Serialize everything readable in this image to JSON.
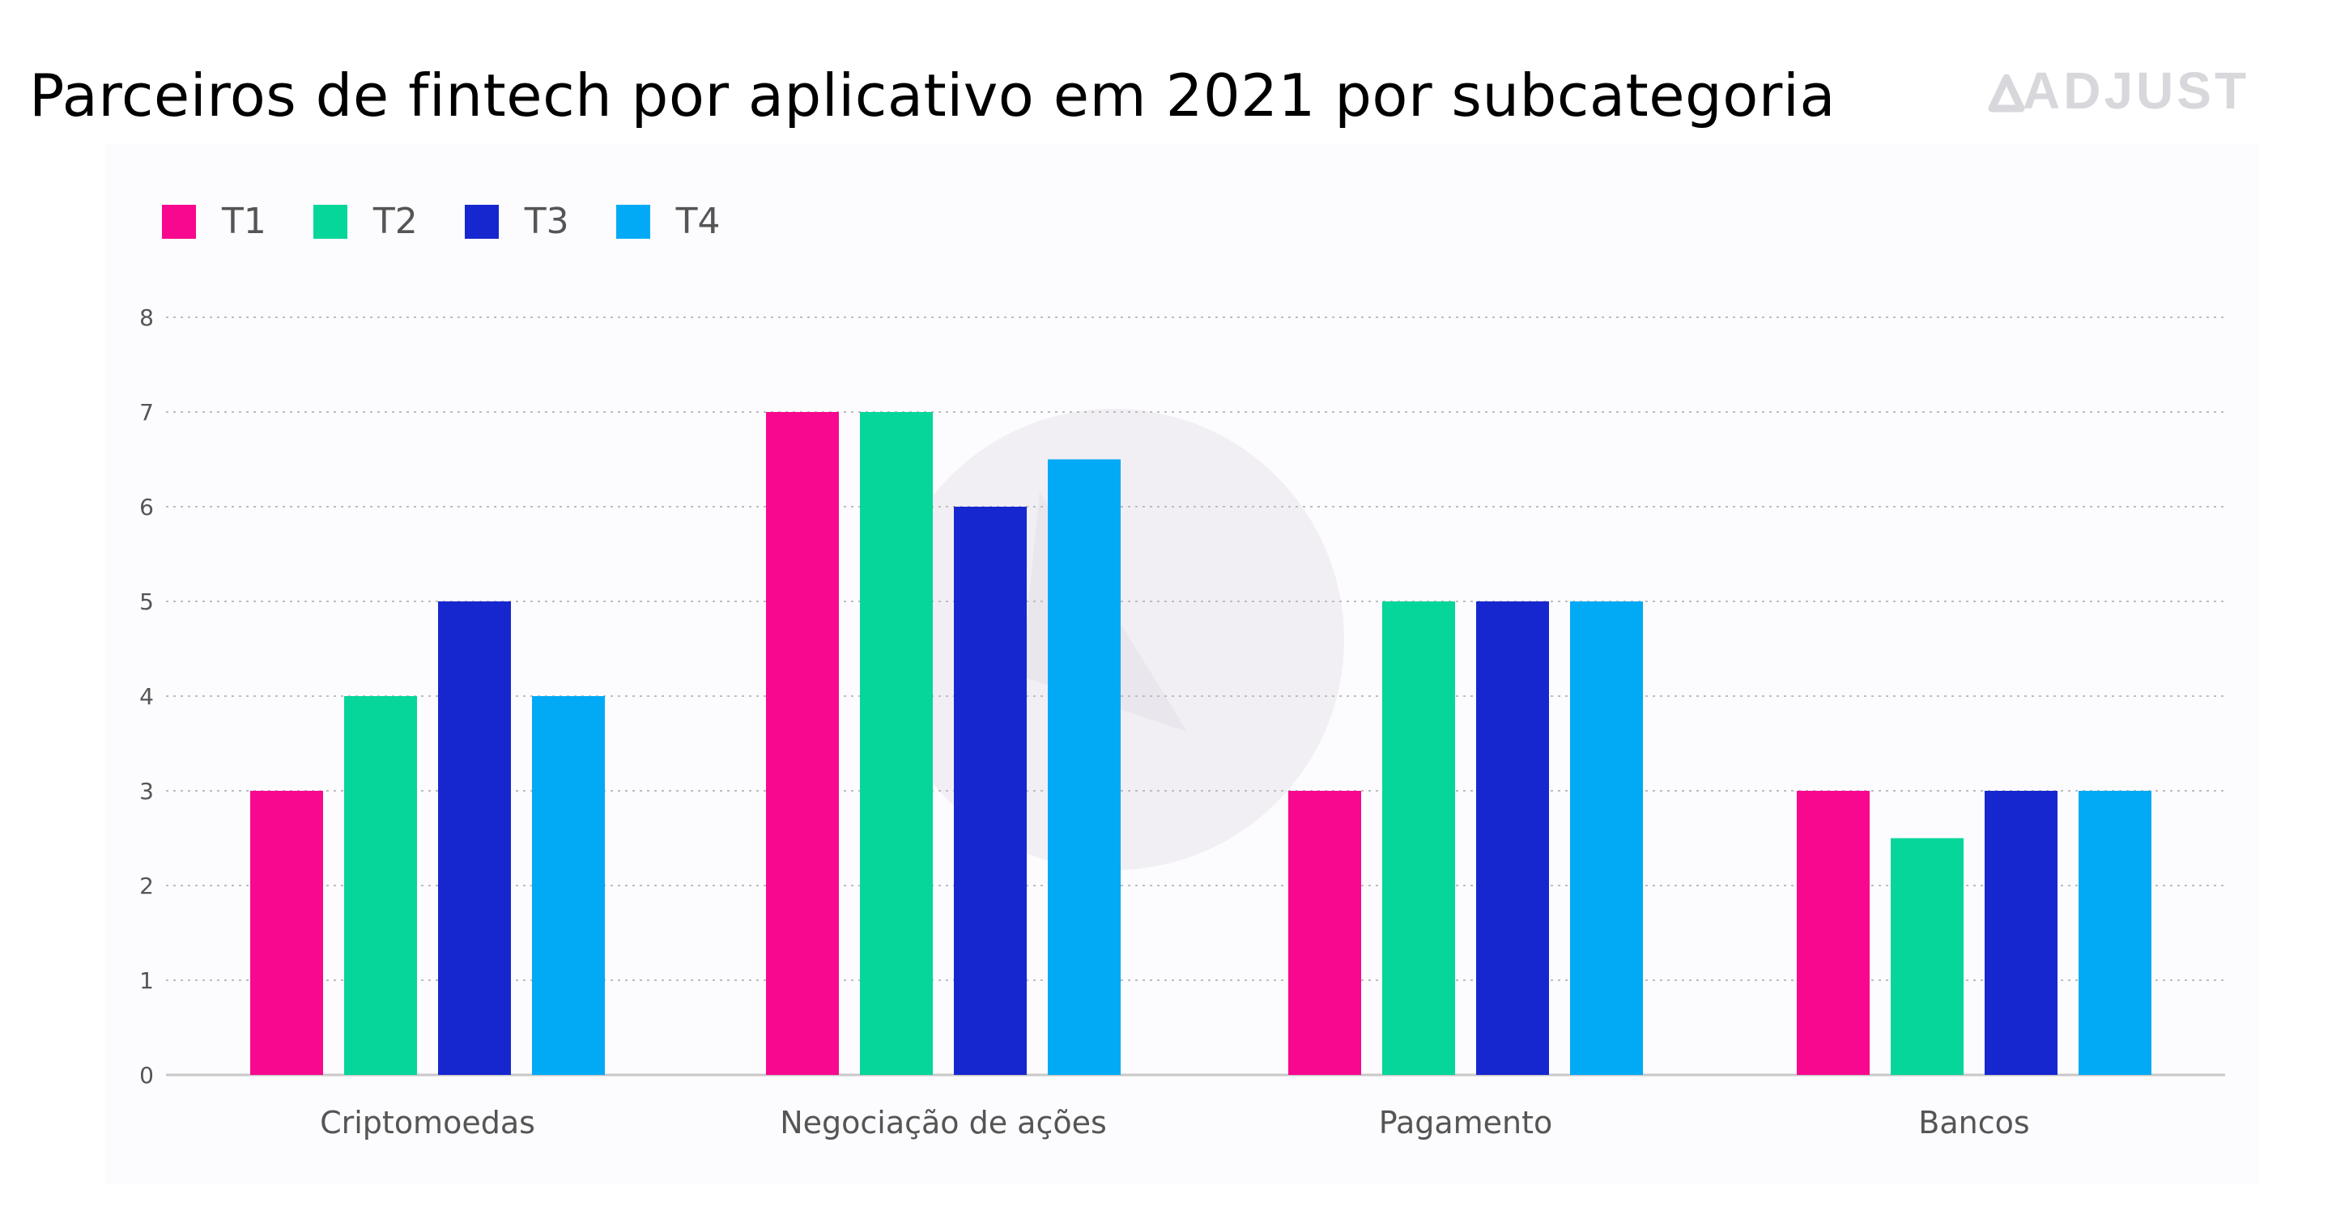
{
  "title": "Parceiros de fintech por aplicativo em 2021 por subcategoria",
  "brand": "ADJUST",
  "colors": {
    "T1": "#f7088f",
    "T2": "#06d69a",
    "T3": "#1727d0",
    "T4": "#02aaf5",
    "grid": "#bdbdbd",
    "axis": "#c8c8c8",
    "brand": "#d7d7dc",
    "watermark": "#f1eff4"
  },
  "legend": [
    {
      "label": "T1",
      "color": "#f7088f"
    },
    {
      "label": "T2",
      "color": "#06d69a"
    },
    {
      "label": "T3",
      "color": "#1727d0"
    },
    {
      "label": "T4",
      "color": "#02aaf5"
    }
  ],
  "chart_data": {
    "type": "bar",
    "title": "Parceiros de fintech por aplicativo em 2021 por subcategoria",
    "xlabel": "",
    "ylabel": "",
    "categories": [
      "Criptomoedas",
      "Negociação de ações",
      "Pagamento",
      "Bancos"
    ],
    "series": [
      {
        "name": "T1",
        "values": [
          3,
          7,
          3,
          3
        ]
      },
      {
        "name": "T2",
        "values": [
          4,
          7,
          5,
          2.5
        ]
      },
      {
        "name": "T3",
        "values": [
          5,
          6,
          5,
          3
        ]
      },
      {
        "name": "T4",
        "values": [
          4,
          6.5,
          5,
          3
        ]
      }
    ],
    "ylim": [
      0,
      8
    ],
    "yticks": [
      0,
      1,
      2,
      3,
      4,
      5,
      6,
      7,
      8
    ],
    "grid": true,
    "legend_position": "top-left"
  }
}
